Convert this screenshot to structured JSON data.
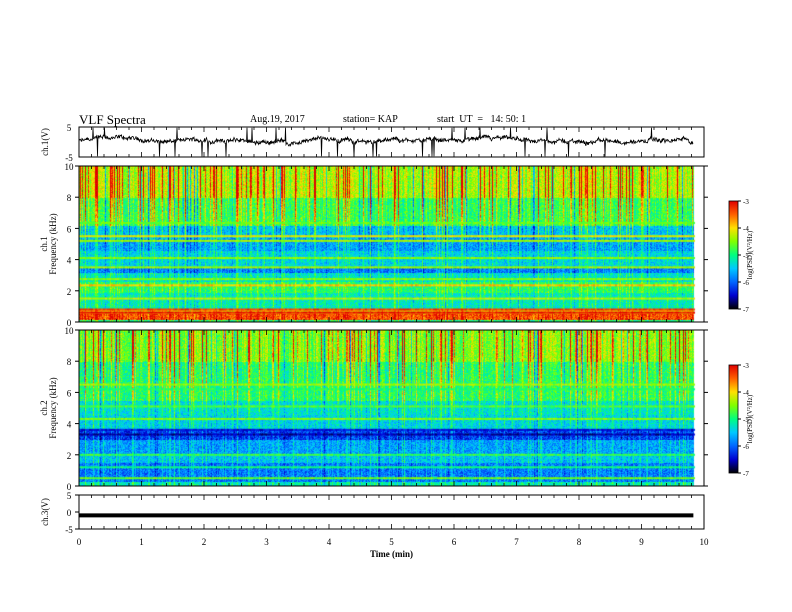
{
  "header": {
    "title": "VLF Spectra",
    "date": "Aug.19, 2017",
    "station": "station= KAP",
    "start": "start  UT  =   14: 50: 1"
  },
  "colormap": [
    "#000000",
    "#0000d0",
    "#0066ff",
    "#00c8ff",
    "#00ff80",
    "#80ff00",
    "#ffe000",
    "#ff6000",
    "#e00000",
    "#ffffff"
  ],
  "chart_data": [
    {
      "type": "line",
      "panel": "ch1-waveform",
      "ylabel": "ch.1(V)",
      "ylim": [
        -5,
        5
      ],
      "ytick_labels": [
        "5",
        "-5"
      ],
      "xlim": [
        0,
        10
      ],
      "x_data_range": [
        0,
        9.83
      ],
      "series": [
        {
          "color": "#000000",
          "mean": 0.3,
          "min": -5,
          "max": 5,
          "noisy": true
        }
      ]
    },
    {
      "type": "heatmap",
      "panel": "ch1-spectrogram",
      "ylabel_line1": "ch.1",
      "ylabel_line2": "Frequency (kHz)",
      "ylim": [
        0,
        10
      ],
      "xlim": [
        0,
        10
      ],
      "x_data_range": [
        0,
        9.83
      ],
      "ytick_labels": [
        "0",
        "2",
        "4",
        "6",
        "8",
        "10"
      ],
      "colorbar": {
        "label": "log(PSD)(V²/Hz)",
        "range": [
          -7,
          -3
        ],
        "tick_labels": [
          "-3",
          "-4",
          "-5",
          "-6",
          "-7"
        ]
      },
      "bands": [
        {
          "f0": 0.0,
          "f1": 0.15,
          "value": -5.0
        },
        {
          "f0": 0.15,
          "f1": 0.55,
          "value": -3.4
        },
        {
          "f0": 0.55,
          "f1": 0.85,
          "value": -4.0
        },
        {
          "f0": 0.85,
          "f1": 1.9,
          "value": -5.2
        },
        {
          "f0": 1.9,
          "f1": 2.6,
          "value": -4.9
        },
        {
          "f0": 2.6,
          "f1": 3.2,
          "value": -5.3
        },
        {
          "f0": 3.2,
          "f1": 3.5,
          "value": -5.9
        },
        {
          "f0": 3.5,
          "f1": 4.6,
          "value": -5.4
        },
        {
          "f0": 4.6,
          "f1": 5.4,
          "value": -5.7
        },
        {
          "f0": 5.4,
          "f1": 6.2,
          "value": -5.5
        },
        {
          "f0": 6.2,
          "f1": 8.0,
          "value": -4.8
        },
        {
          "f0": 8.0,
          "f1": 10.0,
          "value": -4.3
        }
      ],
      "lines": [
        {
          "f": 0.6,
          "value": -3.1
        },
        {
          "f": 0.8,
          "value": -3.3
        },
        {
          "f": 1.5,
          "value": -4.3
        },
        {
          "f": 2.35,
          "value": -3.9
        },
        {
          "f": 2.75,
          "value": -4.5
        },
        {
          "f": 3.5,
          "value": -4.4
        },
        {
          "f": 4.1,
          "value": -4.5
        },
        {
          "f": 5.2,
          "value": -4.4
        },
        {
          "f": 5.5,
          "value": -4.1
        },
        {
          "f": 6.35,
          "value": -4.6
        }
      ]
    },
    {
      "type": "heatmap",
      "panel": "ch2-spectrogram",
      "ylabel_line1": "ch.2",
      "ylabel_line2": "Frequency (kHz)",
      "ylim": [
        0,
        10
      ],
      "xlim": [
        0,
        10
      ],
      "x_data_range": [
        0,
        9.83
      ],
      "ytick_labels": [
        "0",
        "2",
        "4",
        "6",
        "8",
        "10"
      ],
      "colorbar": {
        "label": "log(PSD)(V²/Hz)",
        "range": [
          -7,
          -3
        ],
        "tick_labels": [
          "-3",
          "-4",
          "-5",
          "-6",
          "-7"
        ]
      },
      "bands": [
        {
          "f0": 0.0,
          "f1": 0.3,
          "value": -5.2
        },
        {
          "f0": 0.3,
          "f1": 1.5,
          "value": -5.9
        },
        {
          "f0": 1.5,
          "f1": 2.0,
          "value": -5.5
        },
        {
          "f0": 2.0,
          "f1": 3.0,
          "value": -5.7
        },
        {
          "f0": 3.0,
          "f1": 3.6,
          "value": -6.2
        },
        {
          "f0": 3.6,
          "f1": 4.6,
          "value": -5.4
        },
        {
          "f0": 4.6,
          "f1": 5.5,
          "value": -5.3
        },
        {
          "f0": 5.5,
          "f1": 8.0,
          "value": -4.9
        },
        {
          "f0": 8.0,
          "f1": 10.0,
          "value": -4.5
        }
      ],
      "lines": [
        {
          "f": 0.5,
          "value": -4.6
        },
        {
          "f": 1.2,
          "value": -5.0
        },
        {
          "f": 2.0,
          "value": -4.8
        },
        {
          "f": 3.3,
          "value": -6.6
        },
        {
          "f": 3.6,
          "value": -6.4
        },
        {
          "f": 4.3,
          "value": -4.5
        },
        {
          "f": 5.1,
          "value": -4.7
        },
        {
          "f": 6.2,
          "value": -4.9
        },
        {
          "f": 6.5,
          "value": -4.4
        }
      ]
    },
    {
      "type": "line",
      "panel": "ch3-waveform",
      "ylabel": "ch.3(V)",
      "ylim": [
        -5,
        5
      ],
      "ytick_labels": [
        "5",
        "0",
        "-5"
      ],
      "xlim": [
        0,
        10
      ],
      "x_data_range": [
        0,
        9.83
      ],
      "series": [
        {
          "color": "#000000",
          "value": -1
        }
      ]
    }
  ],
  "xaxis": {
    "label": "Time  (min)",
    "tick_labels": [
      "0",
      "1",
      "2",
      "3",
      "4",
      "5",
      "6",
      "7",
      "8",
      "9",
      "10"
    ],
    "range": [
      0,
      10
    ]
  }
}
